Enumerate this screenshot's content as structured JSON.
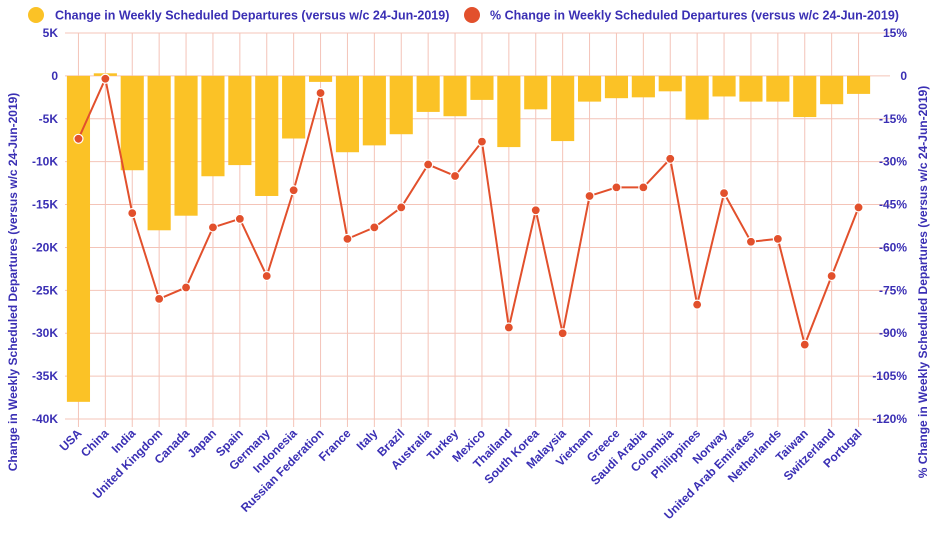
{
  "colors": {
    "bar": "#fbc226",
    "line": "#e2502c",
    "text": "#3a2fb4",
    "grid": "#f4c4b8"
  },
  "chart_data": {
    "type": "bar",
    "categories": [
      "USA",
      "China",
      "India",
      "United Kingdom",
      "Canada",
      "Japan",
      "Spain",
      "Germany",
      "Indonesia",
      "Russian Federation",
      "France",
      "Italy",
      "Brazil",
      "Australia",
      "Turkey",
      "Mexico",
      "Thailand",
      "South Korea",
      "Malaysia",
      "Vietnam",
      "Greece",
      "Saudi Arabia",
      "Colombia",
      "Philippines",
      "Norway",
      "United Arab Emirates",
      "Netherlands",
      "Taiwan",
      "Switzerland",
      "Portugal"
    ],
    "series": [
      {
        "name": "Change in Weekly Scheduled Departures (versus w/c 24-Jun-2019)",
        "type": "bar",
        "axis": "left",
        "values": [
          -38000,
          300,
          -11000,
          -18000,
          -16300,
          -11700,
          -10400,
          -14000,
          -7300,
          -700,
          -8900,
          -8100,
          -6800,
          -4200,
          -4700,
          -2800,
          -8300,
          -3900,
          -7600,
          -3000,
          -2600,
          -2500,
          -1800,
          -5100,
          -2400,
          -3000,
          -3000,
          -4800,
          -3300,
          -2100
        ]
      },
      {
        "name": "% Change in Weekly Scheduled Departures (versus w/c 24-Jun-2019)",
        "type": "line",
        "axis": "right",
        "values": [
          -22,
          -1,
          -48,
          -78,
          -74,
          -53,
          -50,
          -70,
          -40,
          -6,
          -57,
          -53,
          -46,
          -31,
          -35,
          -23,
          -88,
          -47,
          -90,
          -42,
          -39,
          -39,
          -29,
          -80,
          -41,
          -58,
          -57,
          -94,
          -70,
          -46
        ]
      }
    ],
    "ylabel": "Change in Weekly Scheduled Departures (versus w/c 24-Jun-2019)",
    "ylabel_right": "% Change in Weekly Scheduled Departures (versus w/c 24-Jun-2019)",
    "ylim": [
      -40000,
      5000
    ],
    "ylim_right": [
      -120,
      15
    ],
    "yticks": [
      {
        "value": 5000,
        "label": "5K"
      },
      {
        "value": 0,
        "label": "0"
      },
      {
        "value": -5000,
        "label": "-5K"
      },
      {
        "value": -10000,
        "label": "-10K"
      },
      {
        "value": -15000,
        "label": "-15K"
      },
      {
        "value": -20000,
        "label": "-20K"
      },
      {
        "value": -25000,
        "label": "-25K"
      },
      {
        "value": -30000,
        "label": "-30K"
      },
      {
        "value": -35000,
        "label": "-35K"
      },
      {
        "value": -40000,
        "label": "-40K"
      }
    ],
    "yticks_right": [
      {
        "value": 15,
        "label": "15%"
      },
      {
        "value": 0,
        "label": "0"
      },
      {
        "value": -15,
        "label": "-15%"
      },
      {
        "value": -30,
        "label": "-30%"
      },
      {
        "value": -45,
        "label": "-45%"
      },
      {
        "value": -60,
        "label": "-60%"
      },
      {
        "value": -75,
        "label": "-75%"
      },
      {
        "value": -90,
        "label": "-90%"
      },
      {
        "value": -105,
        "label": "-105%"
      },
      {
        "value": -120,
        "label": "-120%"
      }
    ],
    "grid": true,
    "legend_position": "top-left"
  }
}
